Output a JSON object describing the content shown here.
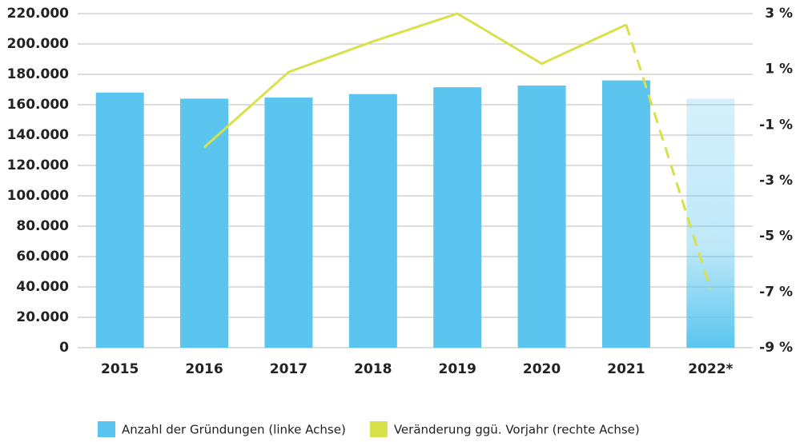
{
  "chart_data": {
    "type": "bar-line",
    "categories": [
      "2015",
      "2016",
      "2017",
      "2018",
      "2019",
      "2020",
      "2021",
      "2022*"
    ],
    "series": [
      {
        "name": "Anzahl der Gründungen (linke Achse)",
        "color": "#5bc5ef",
        "type": "bar",
        "values": [
          168000,
          164000,
          164700,
          167000,
          171500,
          172600,
          176000,
          164000
        ]
      },
      {
        "name": "Veränderung ggü. Vorjahr (rechte Achse)",
        "color": "#d8e04a",
        "type": "line",
        "axis": "y2",
        "values": [
          null,
          -1.8,
          0.9,
          2.0,
          3.0,
          1.2,
          2.6,
          -6.9
        ]
      }
    ],
    "last_is_estimate": true,
    "ylim": [
      0,
      220000
    ],
    "yticks": [
      0,
      {
        "value": 20000,
        "label": "20.000"
      },
      {
        "value": 40000,
        "label": "40.000"
      },
      {
        "value": 60000,
        "label": "60.000"
      },
      {
        "value": 80000,
        "label": "80.000"
      },
      {
        "value": 100000,
        "label": "100.000"
      },
      {
        "value": 120000,
        "label": "120.000"
      },
      {
        "value": 140000,
        "label": "140.000"
      },
      {
        "value": 160000,
        "label": "160.000"
      },
      {
        "value": 180000,
        "label": "180.000"
      },
      {
        "value": 200000,
        "label": "200.000"
      },
      {
        "value": 220000,
        "label": "220.000"
      }
    ],
    "y2lim": [
      -9,
      3
    ],
    "y2ticks": [
      {
        "value": -9,
        "label": "-9 %"
      },
      {
        "value": -7,
        "label": "-7 %"
      },
      {
        "value": -5,
        "label": "-5 %"
      },
      {
        "value": -3,
        "label": "-3 %"
      },
      {
        "value": -1,
        "label": "-1 %"
      },
      {
        "value": 1,
        "label": "1 %"
      },
      {
        "value": 3,
        "label": "3 %"
      }
    ],
    "grid": true
  }
}
